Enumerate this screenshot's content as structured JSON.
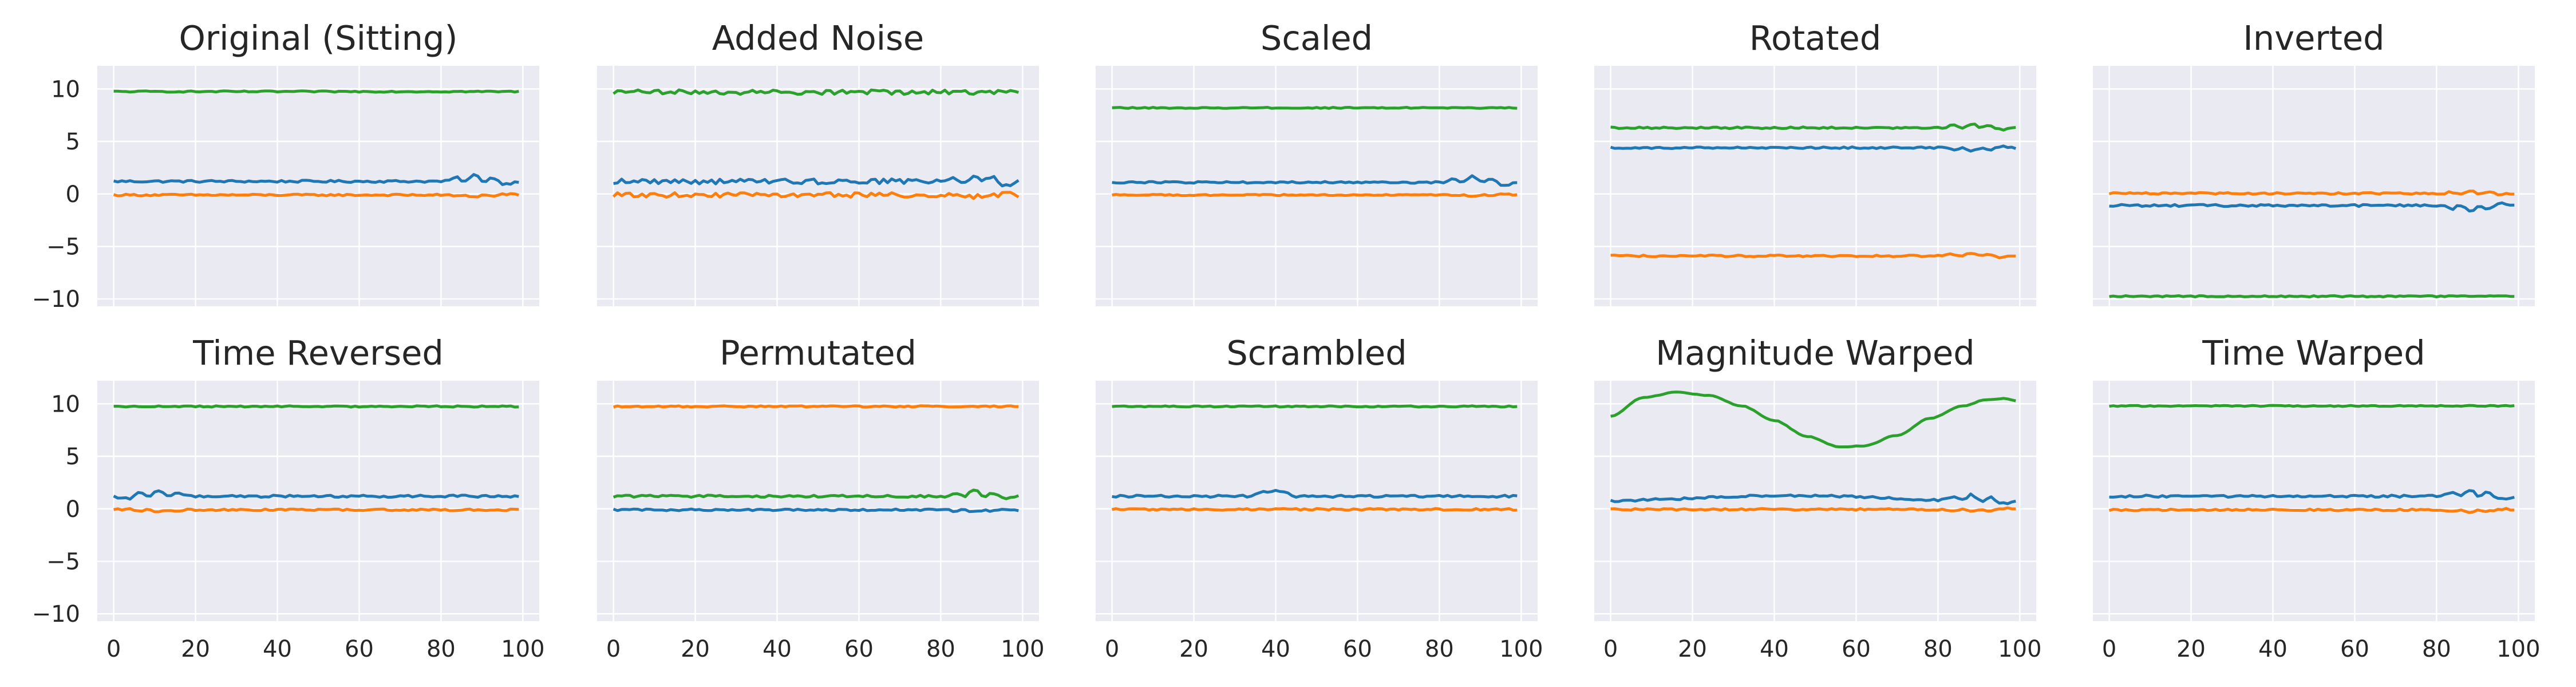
{
  "chart_data": [
    {
      "type": "line",
      "title": "Original (Sitting)",
      "xlim": [
        -4,
        104
      ],
      "ylim": [
        -10.7,
        12.2
      ],
      "xticks": [
        "0",
        "20",
        "40",
        "60",
        "80",
        "100"
      ],
      "yticks": [
        "10",
        "5",
        "0",
        "−5",
        "−10"
      ],
      "grid": true,
      "series": [
        {
          "color": "#1f77b4",
          "pattern": "flat",
          "base": 1.2,
          "bump": 0.6,
          "noise": 0.1
        },
        {
          "color": "#ff7f0e",
          "pattern": "flat",
          "base": -0.1,
          "bump": -0.2,
          "noise": 0.08
        },
        {
          "color": "#2ca02c",
          "pattern": "flat",
          "base": 9.75,
          "bump": 0,
          "noise": 0.06
        }
      ]
    },
    {
      "type": "line",
      "title": "Added Noise",
      "xlim": [
        -4,
        104
      ],
      "ylim": [
        -10.7,
        12.2
      ],
      "xticks": [
        "0",
        "20",
        "40",
        "60",
        "80",
        "100"
      ],
      "yticks": [
        "10",
        "5",
        "0",
        "−5",
        "−10"
      ],
      "grid": true,
      "series": [
        {
          "color": "#1f77b4",
          "pattern": "flat",
          "base": 1.2,
          "bump": 0.6,
          "noise": 0.25
        },
        {
          "color": "#ff7f0e",
          "pattern": "flat",
          "base": -0.1,
          "bump": -0.2,
          "noise": 0.22
        },
        {
          "color": "#2ca02c",
          "pattern": "flat",
          "base": 9.7,
          "bump": 0,
          "noise": 0.22
        }
      ]
    },
    {
      "type": "line",
      "title": "Scaled",
      "xlim": [
        -4,
        104
      ],
      "ylim": [
        -10.7,
        12.2
      ],
      "xticks": [
        "0",
        "20",
        "40",
        "60",
        "80",
        "100"
      ],
      "yticks": [
        "10",
        "5",
        "0",
        "−5",
        "−10"
      ],
      "grid": true,
      "series": [
        {
          "color": "#1f77b4",
          "pattern": "flat",
          "base": 1.1,
          "bump": 0.6,
          "noise": 0.08
        },
        {
          "color": "#ff7f0e",
          "pattern": "flat",
          "base": -0.1,
          "bump": -0.15,
          "noise": 0.06
        },
        {
          "color": "#2ca02c",
          "pattern": "flat",
          "base": 8.2,
          "bump": 0,
          "noise": 0.05
        }
      ]
    },
    {
      "type": "line",
      "title": "Rotated",
      "xlim": [
        -4,
        104
      ],
      "ylim": [
        -10.7,
        12.2
      ],
      "xticks": [
        "0",
        "20",
        "40",
        "60",
        "80",
        "100"
      ],
      "yticks": [
        "10",
        "5",
        "0",
        "−5",
        "−10"
      ],
      "grid": true,
      "series": [
        {
          "color": "#1f77b4",
          "pattern": "flat",
          "base": 4.4,
          "bump": -0.3,
          "noise": 0.08
        },
        {
          "color": "#ff7f0e",
          "pattern": "flat",
          "base": -5.9,
          "bump": 0.3,
          "noise": 0.08
        },
        {
          "color": "#2ca02c",
          "pattern": "flat",
          "base": 6.3,
          "bump": 0.4,
          "noise": 0.08
        }
      ]
    },
    {
      "type": "line",
      "title": "Inverted",
      "xlim": [
        -4,
        104
      ],
      "ylim": [
        -10.7,
        12.2
      ],
      "xticks": [
        "0",
        "20",
        "40",
        "60",
        "80",
        "100"
      ],
      "yticks": [
        "10",
        "5",
        "0",
        "−5",
        "−10"
      ],
      "grid": true,
      "series": [
        {
          "color": "#1f77b4",
          "pattern": "flat",
          "base": -1.1,
          "bump": -0.6,
          "noise": 0.1
        },
        {
          "color": "#ff7f0e",
          "pattern": "flat",
          "base": 0.05,
          "bump": 0.2,
          "noise": 0.08
        },
        {
          "color": "#2ca02c",
          "pattern": "flat",
          "base": -9.75,
          "bump": 0,
          "noise": 0.06
        }
      ]
    },
    {
      "type": "line",
      "title": "Time Reversed",
      "xlim": [
        -4,
        104
      ],
      "ylim": [
        -10.7,
        12.2
      ],
      "xticks": [
        "0",
        "20",
        "40",
        "60",
        "80",
        "100"
      ],
      "yticks": [
        "10",
        "5",
        "0",
        "−5",
        "−10"
      ],
      "grid": true,
      "series": [
        {
          "color": "#1f77b4",
          "pattern": "flat-reversed",
          "base": 1.2,
          "bump": 0.6,
          "noise": 0.1
        },
        {
          "color": "#ff7f0e",
          "pattern": "flat-reversed",
          "base": -0.1,
          "bump": -0.2,
          "noise": 0.08
        },
        {
          "color": "#2ca02c",
          "pattern": "flat",
          "base": 9.75,
          "bump": 0,
          "noise": 0.06
        }
      ]
    },
    {
      "type": "line",
      "title": "Permutated",
      "xlim": [
        -4,
        104
      ],
      "ylim": [
        -10.7,
        12.2
      ],
      "xticks": [
        "0",
        "20",
        "40",
        "60",
        "80",
        "100"
      ],
      "yticks": [
        "10",
        "5",
        "0",
        "−5",
        "−10"
      ],
      "grid": true,
      "series": [
        {
          "color": "#1f77b4",
          "pattern": "flat",
          "base": -0.1,
          "bump": -0.2,
          "noise": 0.08
        },
        {
          "color": "#ff7f0e",
          "pattern": "flat",
          "base": 9.75,
          "bump": 0,
          "noise": 0.06
        },
        {
          "color": "#2ca02c",
          "pattern": "flat",
          "base": 1.2,
          "bump": 0.6,
          "noise": 0.1
        }
      ]
    },
    {
      "type": "line",
      "title": "Scrambled",
      "xlim": [
        -4,
        104
      ],
      "ylim": [
        -10.7,
        12.2
      ],
      "xticks": [
        "0",
        "20",
        "40",
        "60",
        "80",
        "100"
      ],
      "yticks": [
        "10",
        "5",
        "0",
        "−5",
        "−10"
      ],
      "grid": true,
      "series": [
        {
          "color": "#1f77b4",
          "pattern": "bump-mid",
          "base": 1.2,
          "bump": 0.5,
          "noise": 0.1
        },
        {
          "color": "#ff7f0e",
          "pattern": "flat",
          "base": -0.05,
          "bump": 0,
          "noise": 0.08
        },
        {
          "color": "#2ca02c",
          "pattern": "flat",
          "base": 9.75,
          "bump": 0,
          "noise": 0.06
        }
      ]
    },
    {
      "type": "line",
      "title": "Magnitude Warped",
      "xlim": [
        -4,
        104
      ],
      "ylim": [
        -10.7,
        12.2
      ],
      "xticks": [
        "0",
        "20",
        "40",
        "60",
        "80",
        "100"
      ],
      "yticks": [
        "10",
        "5",
        "0",
        "−5",
        "−10"
      ],
      "grid": true,
      "series": [
        {
          "color": "#1f77b4",
          "pattern": "flat",
          "base": 1.0,
          "bump": 0.6,
          "noise": 0.1,
          "wave": 0.25
        },
        {
          "color": "#ff7f0e",
          "pattern": "flat",
          "base": -0.05,
          "bump": -0.2,
          "noise": 0.08
        },
        {
          "color": "#2ca02c",
          "pattern": "wave",
          "points": [
            [
              0,
              8.8
            ],
            [
              8,
              10.6
            ],
            [
              16,
              11.1
            ],
            [
              24,
              10.8
            ],
            [
              32,
              9.8
            ],
            [
              40,
              8.4
            ],
            [
              48,
              6.9
            ],
            [
              56,
              5.9
            ],
            [
              62,
              6.0
            ],
            [
              70,
              7.0
            ],
            [
              78,
              8.6
            ],
            [
              86,
              9.8
            ],
            [
              92,
              10.4
            ],
            [
              96,
              10.5
            ],
            [
              99,
              10.3
            ]
          ]
        }
      ]
    },
    {
      "type": "line",
      "title": "Time Warped",
      "xlim": [
        -4,
        104
      ],
      "ylim": [
        -10.7,
        12.2
      ],
      "xticks": [
        "0",
        "20",
        "40",
        "60",
        "80",
        "100"
      ],
      "yticks": [
        "10",
        "5",
        "0",
        "−5",
        "−10"
      ],
      "grid": true,
      "series": [
        {
          "color": "#1f77b4",
          "pattern": "flat",
          "base": 1.2,
          "bump": 0.6,
          "noise": 0.1
        },
        {
          "color": "#ff7f0e",
          "pattern": "flat",
          "base": -0.1,
          "bump": -0.2,
          "noise": 0.08
        },
        {
          "color": "#2ca02c",
          "pattern": "flat",
          "base": 9.8,
          "bump": 0,
          "noise": 0.05
        }
      ]
    }
  ]
}
